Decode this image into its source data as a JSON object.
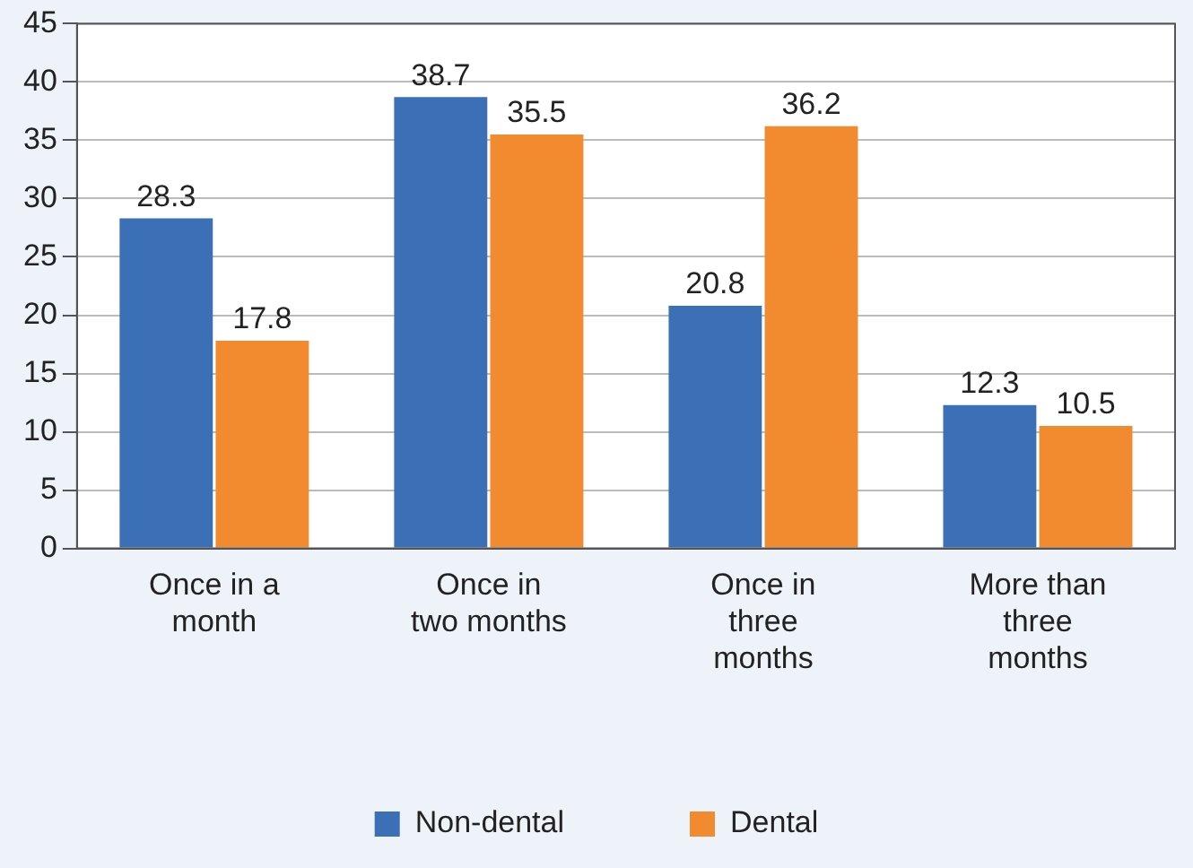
{
  "chart_data": {
    "type": "bar",
    "categories": [
      "Once in a month",
      "Once in two months",
      "Once in three months",
      "More than three months"
    ],
    "series": [
      {
        "name": "Non-dental",
        "color": "#3b6fb6",
        "values": [
          28.3,
          38.7,
          20.8,
          12.3
        ]
      },
      {
        "name": "Dental",
        "color": "#f28a30",
        "values": [
          17.8,
          35.5,
          36.2,
          10.5
        ]
      }
    ],
    "ylim": [
      0,
      45
    ],
    "yticks": [
      0,
      5,
      10,
      15,
      20,
      25,
      30,
      35,
      40,
      45
    ],
    "grid": "y",
    "legend": "bottom",
    "data_labels": true
  }
}
